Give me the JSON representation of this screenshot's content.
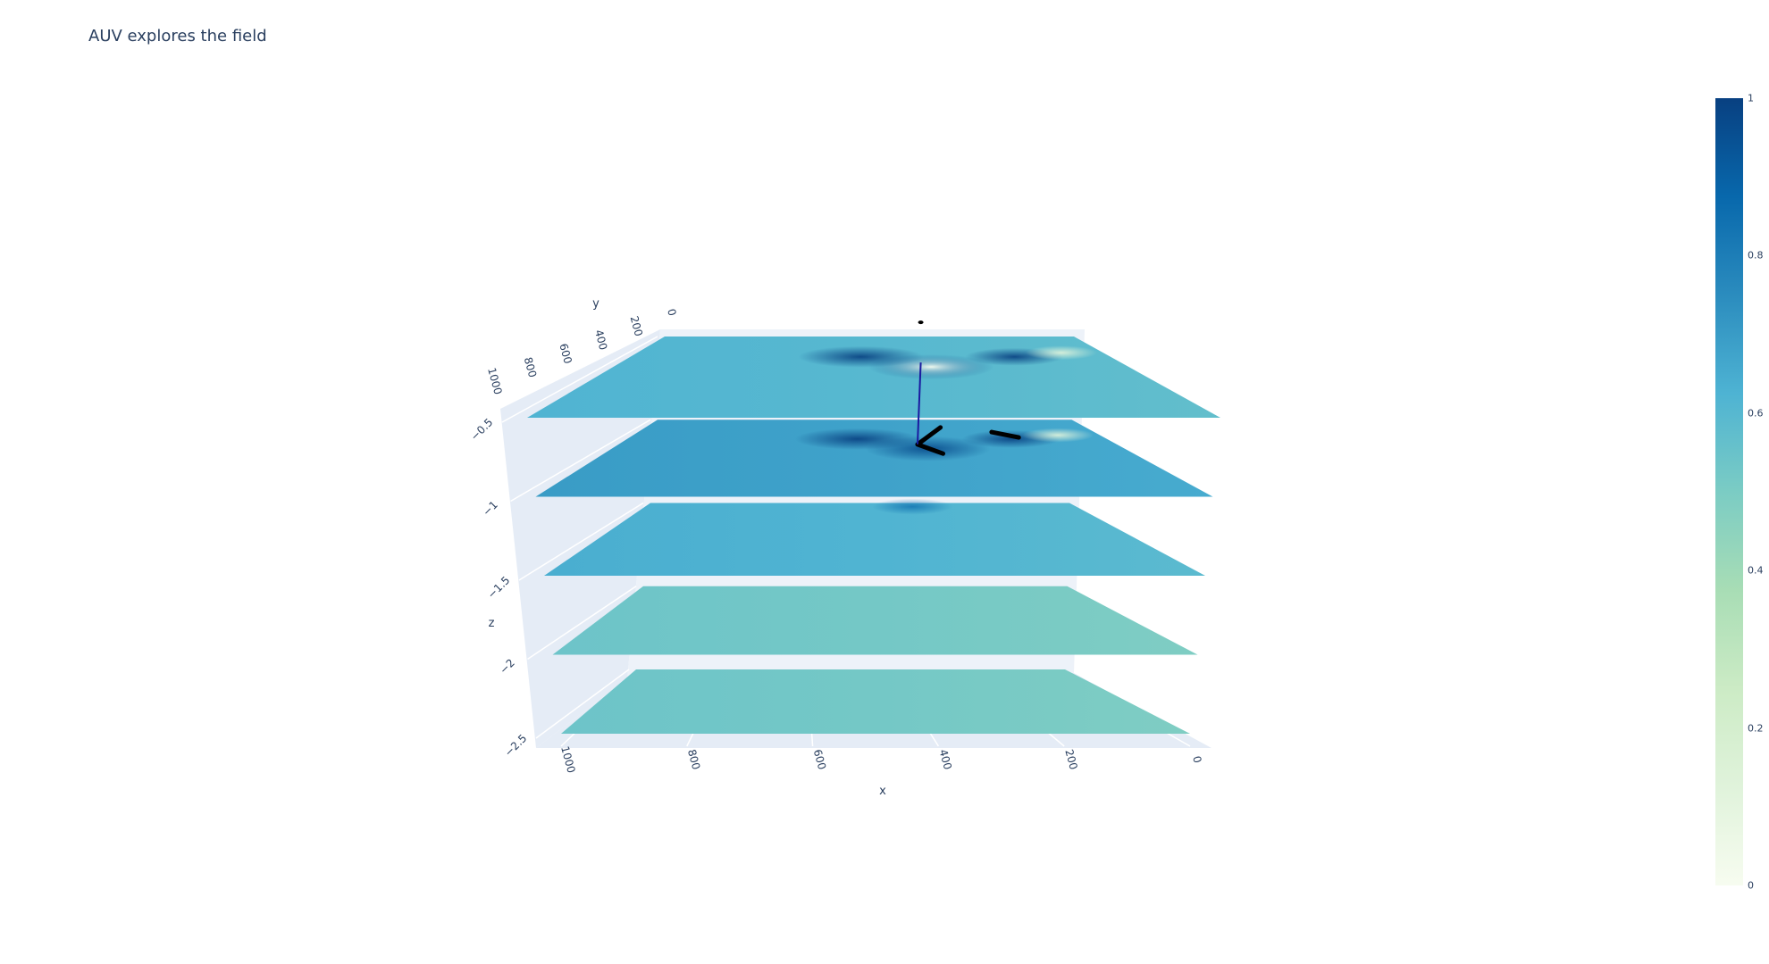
{
  "chart_data": {
    "type": "surface",
    "title": "AUV explores the field",
    "axes": {
      "x": {
        "label": "x",
        "range": [
          0,
          1000
        ],
        "ticks": [
          "0",
          "200",
          "400",
          "600",
          "800",
          "1000"
        ]
      },
      "y": {
        "label": "y",
        "range": [
          0,
          1000
        ],
        "ticks": [
          "0",
          "200",
          "400",
          "600",
          "800",
          "1000"
        ]
      },
      "z": {
        "label": "z",
        "range": [
          -2.5,
          -0.5
        ],
        "ticks": [
          "−0.5",
          "−1",
          "−1.5",
          "−2",
          "−2.5"
        ]
      }
    },
    "layers": [
      {
        "z": -0.5,
        "base_level": 0.6
      },
      {
        "z": -1.0,
        "base_level": 0.68
      },
      {
        "z": -1.5,
        "base_level": 0.62
      },
      {
        "z": -2.0,
        "base_level": 0.52
      },
      {
        "z": -2.5,
        "base_level": 0.52
      }
    ],
    "trajectory": {
      "color": "#000000",
      "segments": [
        {
          "z": -1.0,
          "points": [
            [
              330,
              100
            ],
            [
              400,
              320
            ],
            [
              360,
              440
            ]
          ]
        },
        {
          "z": -1.0,
          "points": [
            [
              180,
              230
            ],
            [
              225,
              160
            ]
          ]
        }
      ]
    },
    "colorscale": {
      "name": "GnBu",
      "range": [
        0,
        1
      ],
      "ticks": [
        "0",
        "0.2",
        "0.4",
        "0.6",
        "0.8",
        "1"
      ]
    },
    "grid": true
  }
}
